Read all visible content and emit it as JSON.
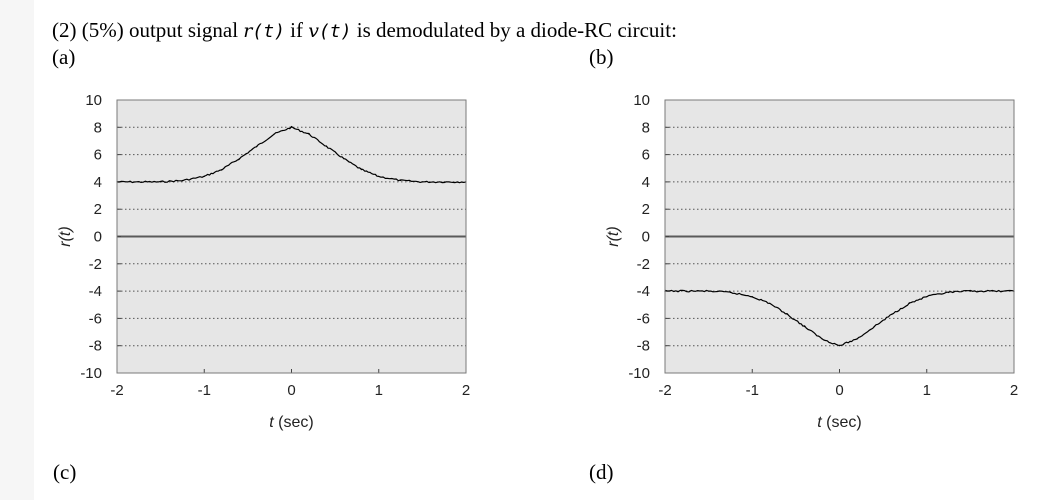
{
  "question": {
    "part": "(2) (5%) output signal",
    "sym_r": "r",
    "arg_r": "(t)",
    "if_word": "if",
    "sym_v": "v",
    "arg_v": "(t)",
    "tail": "is demodulated by a diode-RC circuit:"
  },
  "panel_labels": {
    "a": "(a)",
    "b": "(b)",
    "c": "(c)",
    "d": "(d)"
  },
  "colors": {
    "plot_bg": "#e6e6e6",
    "trace": "#000000",
    "grid": "#555555",
    "zero_line": "#5a5a5a",
    "page_gutter": "#f6f6f6"
  },
  "chart_data": [
    {
      "id": "a",
      "type": "line",
      "title": "",
      "xlabel": "t (sec)",
      "ylabel": "r(t)",
      "xlim": [
        -2,
        2
      ],
      "ylim": [
        -10,
        10
      ],
      "xticks": [
        -2,
        -1,
        0,
        1,
        2
      ],
      "yticks": [
        10,
        8,
        6,
        4,
        2,
        0,
        -2,
        -4,
        -6,
        -8,
        -10
      ],
      "xtick_labels": [
        "-2",
        "-1",
        "0",
        "1",
        "2"
      ],
      "ytick_labels": [
        "10",
        "8",
        "6",
        "4",
        "2",
        "0",
        "-2",
        "-4",
        "-6",
        "-8",
        "-10"
      ],
      "grid": "horizontal dotted",
      "zero_line": true,
      "series": [
        {
          "x": [
            -2.0,
            -1.75,
            -1.5,
            -1.25,
            -1.0,
            -0.8,
            -0.6,
            -0.4,
            -0.2,
            0.0,
            0.2,
            0.4,
            0.6,
            0.8,
            1.0,
            1.25,
            1.5,
            1.75,
            2.0
          ],
          "y": [
            4.0,
            4.0,
            4.0,
            4.1,
            4.4,
            4.9,
            5.7,
            6.6,
            7.5,
            8.0,
            7.5,
            6.6,
            5.7,
            4.9,
            4.4,
            4.1,
            4.0,
            4.0,
            4.0
          ]
        }
      ]
    },
    {
      "id": "b",
      "type": "line",
      "title": "",
      "xlabel": "t (sec)",
      "ylabel": "r(t)",
      "xlim": [
        -2,
        2
      ],
      "ylim": [
        -10,
        10
      ],
      "xticks": [
        -2,
        -1,
        0,
        1,
        2
      ],
      "yticks": [
        10,
        8,
        6,
        4,
        2,
        0,
        -2,
        -4,
        -6,
        -8,
        -10
      ],
      "xtick_labels": [
        "-2",
        "-1",
        "0",
        "1",
        "2"
      ],
      "ytick_labels": [
        "10",
        "8",
        "6",
        "4",
        "2",
        "0",
        "-2",
        "-4",
        "-6",
        "-8",
        "-10"
      ],
      "grid": "horizontal dotted",
      "zero_line": true,
      "series": [
        {
          "x": [
            -2.0,
            -1.75,
            -1.5,
            -1.25,
            -1.0,
            -0.8,
            -0.6,
            -0.4,
            -0.2,
            0.0,
            0.2,
            0.4,
            0.6,
            0.8,
            1.0,
            1.25,
            1.5,
            1.75,
            2.0
          ],
          "y": [
            -4.0,
            -4.0,
            -4.0,
            -4.1,
            -4.4,
            -4.9,
            -5.7,
            -6.6,
            -7.5,
            -8.0,
            -7.5,
            -6.6,
            -5.7,
            -4.9,
            -4.4,
            -4.1,
            -4.0,
            -4.0,
            -4.0
          ]
        }
      ]
    }
  ]
}
